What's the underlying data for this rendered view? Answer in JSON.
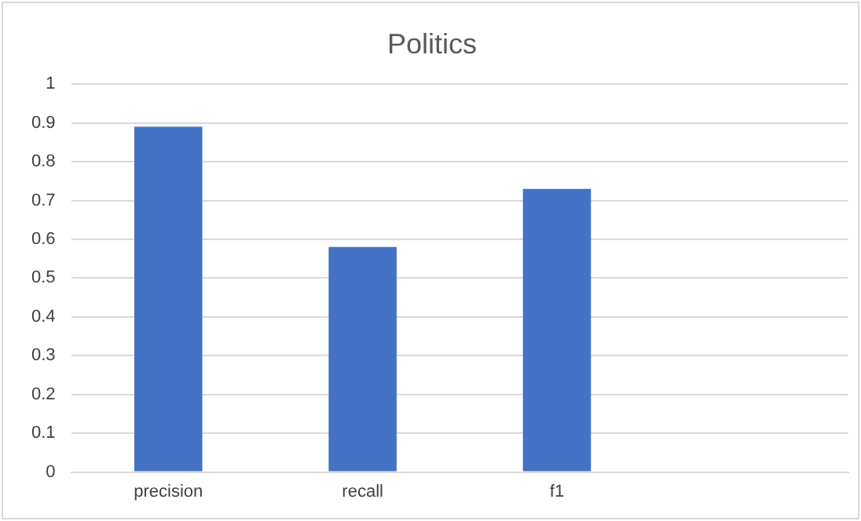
{
  "chart_data": {
    "type": "bar",
    "title": "Politics",
    "categories": [
      "precision",
      "recall",
      "f1",
      null
    ],
    "values": [
      0.89,
      0.58,
      0.73,
      null
    ],
    "color": "#4472c4",
    "ylim": [
      0,
      1
    ],
    "yticks": [
      0,
      0.1,
      0.2,
      0.3,
      0.4,
      0.5,
      0.6,
      0.7,
      0.8,
      0.9,
      1
    ],
    "grid": "y",
    "legend": false
  }
}
